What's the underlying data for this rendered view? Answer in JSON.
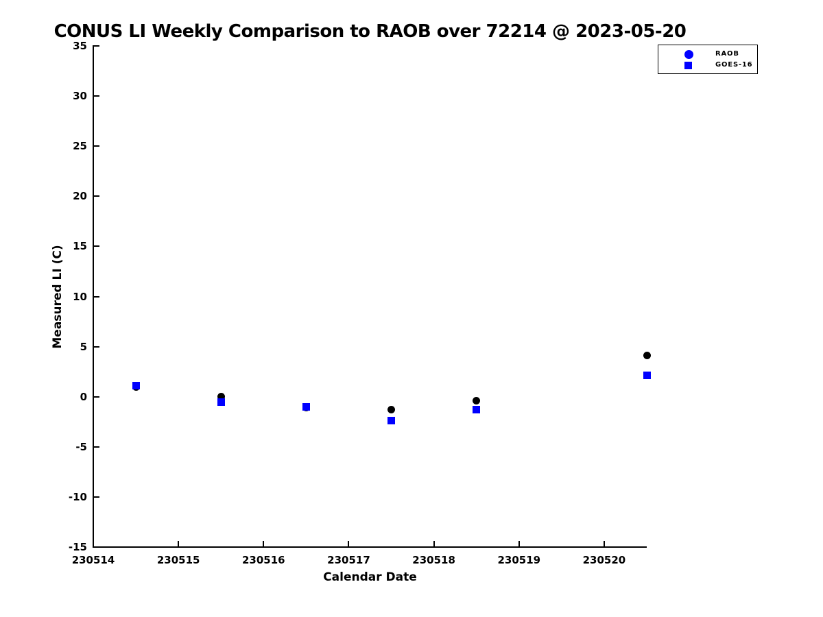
{
  "figure": {
    "background": "#ffffff",
    "axis_color": "#000000"
  },
  "chart_data": {
    "type": "scatter",
    "title": "CONUS LI Weekly Comparison to RAOB over 72214 @ 2023-05-20",
    "xlabel": "Calendar Date",
    "ylabel": "Measured LI (C)",
    "xlim": [
      230514,
      230520.5
    ],
    "ylim": [
      -15,
      35
    ],
    "xticks": [
      230514,
      230515,
      230516,
      230517,
      230518,
      230519,
      230520
    ],
    "yticks": [
      35,
      30,
      25,
      20,
      15,
      10,
      5,
      0,
      -5,
      -10,
      -15
    ],
    "grid": false,
    "legend_position": "top-right",
    "x": [
      230514.5,
      230515.5,
      230516.5,
      230517.5,
      230518.5,
      230520.5
    ],
    "series": [
      {
        "name": "RAOB",
        "marker": "circle",
        "plot_color": "#000000",
        "legend_color": "#0000ff",
        "values": [
          1.0,
          0.0,
          -1.1,
          -1.3,
          -0.4,
          4.1
        ]
      },
      {
        "name": "GOES-16",
        "marker": "square",
        "plot_color": "#0000ff",
        "legend_color": "#0000ff",
        "values": [
          1.1,
          -0.5,
          -1.0,
          -2.4,
          -1.3,
          2.1
        ]
      }
    ]
  }
}
